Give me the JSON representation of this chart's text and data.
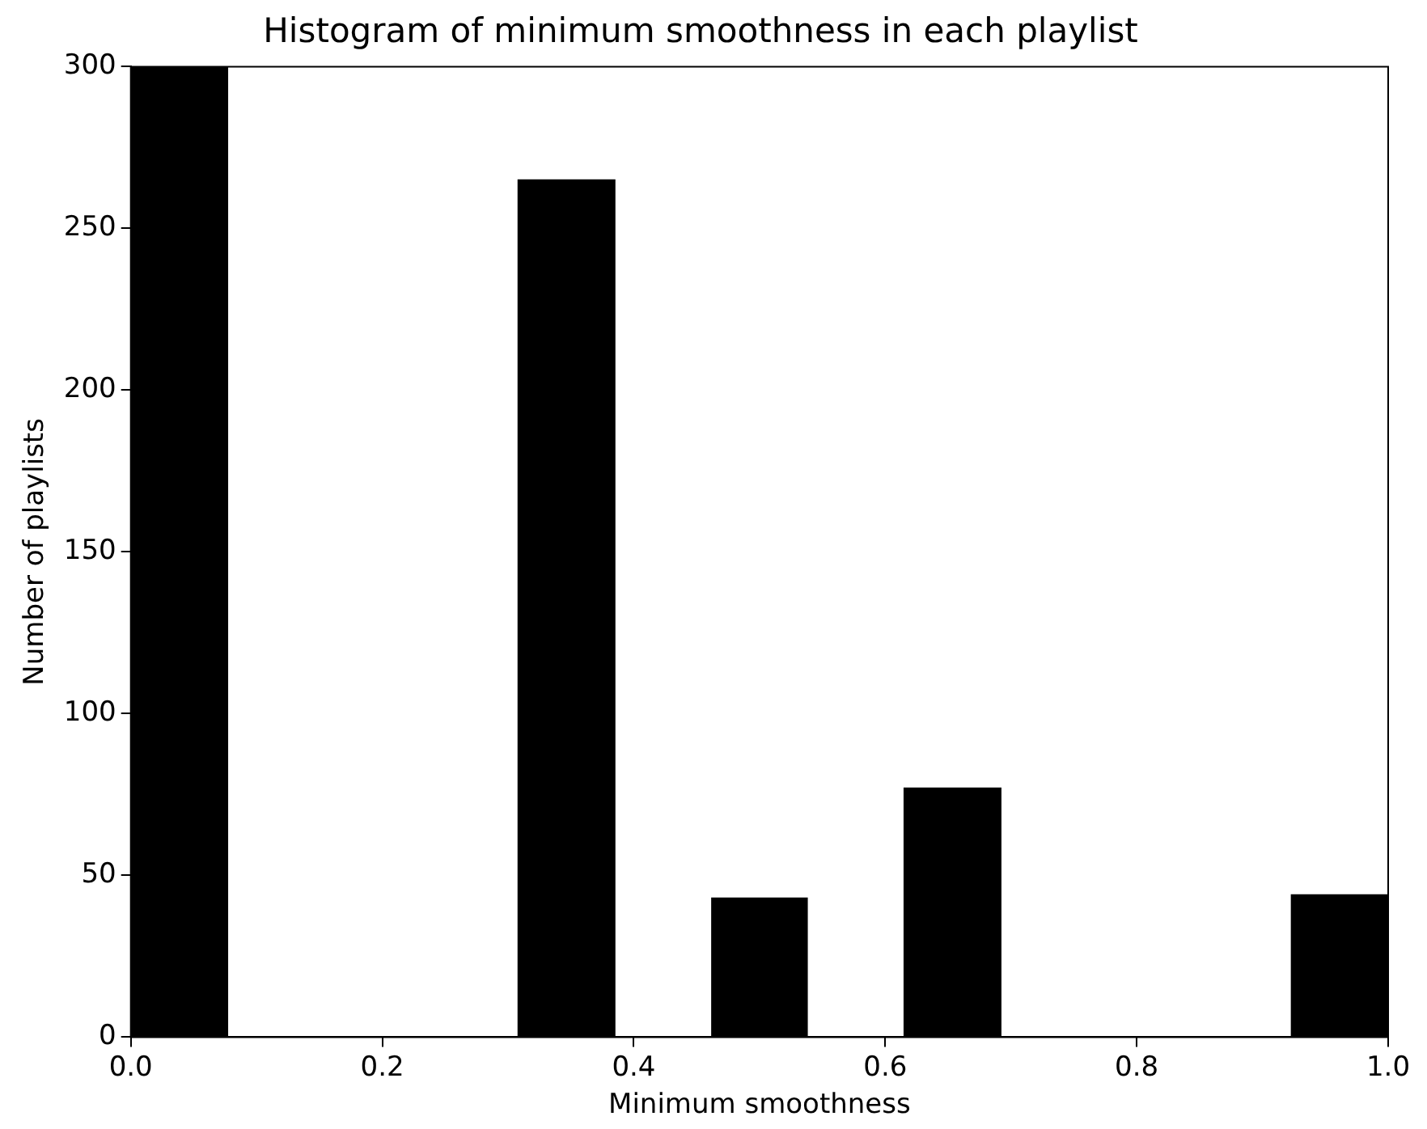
{
  "chart_data": {
    "type": "histogram",
    "title": "Histogram of minimum smoothness in each playlist",
    "xlabel": "Minimum smoothness",
    "ylabel": "Number of playlists",
    "bins": [
      0,
      0.077,
      0.154,
      0.231,
      0.308,
      0.385,
      0.462,
      0.538,
      0.615,
      0.692,
      0.769,
      0.846,
      0.923,
      1
    ],
    "values": [
      300,
      0,
      0,
      0,
      265,
      0,
      43,
      0,
      77,
      0,
      0,
      0,
      44
    ],
    "color": "#000000",
    "xlim": [
      0,
      1
    ],
    "xticks": [
      {
        "value": 0,
        "label": "0.0"
      },
      {
        "value": 0.2,
        "label": "0.2"
      },
      {
        "value": 0.4,
        "label": "0.4"
      },
      {
        "value": 0.6,
        "label": "0.6"
      },
      {
        "value": 0.8,
        "label": "0.8"
      },
      {
        "value": 1,
        "label": "1.0"
      }
    ],
    "ylim": [
      0,
      300
    ],
    "yticks": [
      0,
      50,
      100,
      150,
      200,
      250,
      300
    ],
    "grid": false,
    "legend": false
  }
}
